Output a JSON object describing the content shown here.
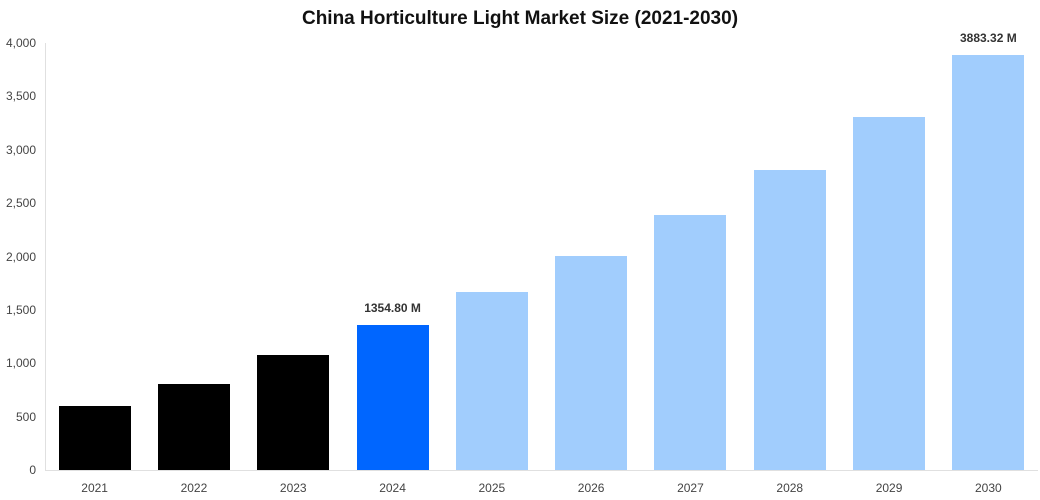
{
  "chart_data": {
    "type": "bar",
    "title": "China Horticulture Light Market Size (2021-2030)",
    "xlabel": "",
    "ylabel": "",
    "ylim": [
      0,
      4000
    ],
    "yticks": [
      0,
      500,
      1000,
      1500,
      2000,
      2500,
      3000,
      3500,
      4000
    ],
    "ytick_labels": [
      "0",
      "500",
      "1,000",
      "1,500",
      "2,000",
      "2,500",
      "3,000",
      "3,500",
      "4,000"
    ],
    "categories": [
      "2021",
      "2022",
      "2023",
      "2024",
      "2025",
      "2026",
      "2027",
      "2028",
      "2029",
      "2030"
    ],
    "values": [
      604,
      810,
      1073,
      1354.8,
      1663,
      2009,
      2387,
      2812,
      3305,
      3883.32
    ],
    "bar_colors": [
      "#000000",
      "#000000",
      "#000000",
      "#0066ff",
      "#a1cdfd",
      "#a1cdfd",
      "#a1cdfd",
      "#a1cdfd",
      "#a1cdfd",
      "#a1cdfd"
    ],
    "annotations": [
      {
        "category": "2024",
        "text": "1354.80 M"
      },
      {
        "category": "2030",
        "text": "3883.32 M"
      }
    ],
    "grid": false,
    "legend": null
  }
}
